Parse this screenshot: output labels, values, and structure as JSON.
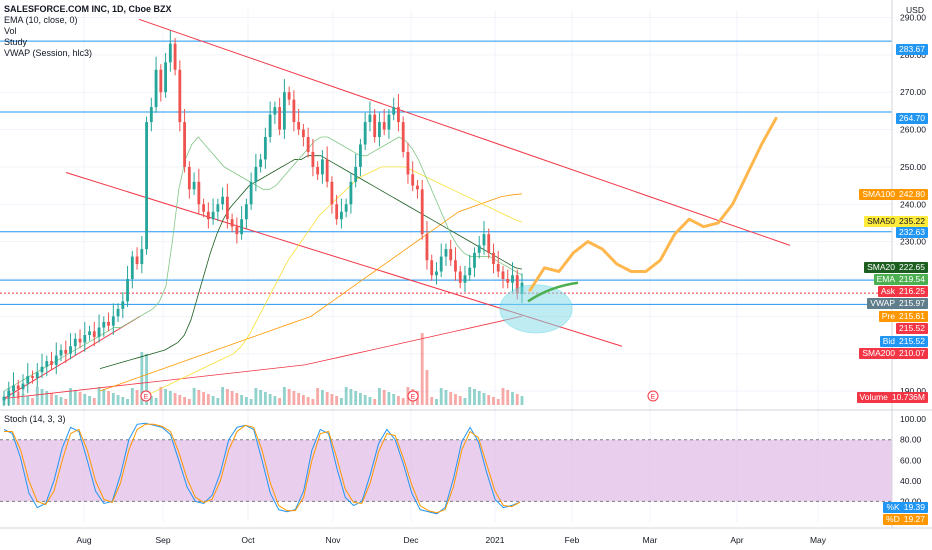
{
  "header": {
    "symbol": "SALESFORCE.COM INC, 1D, Cboe BZX",
    "ema": "EMA (10, close, 0)",
    "vol": "Vol",
    "study": "Study",
    "vwap": "VWAP (Session, hlc3)"
  },
  "price_axis": {
    "currency": "USD"
  },
  "stoch": {
    "label": "Stoch (14, 3, 3)"
  },
  "price_tags": [
    {
      "name": "",
      "value": "283.67",
      "color": "#2196f3",
      "text_color": "#ffffff"
    },
    {
      "name": "",
      "value": "264.70",
      "color": "#2196f3",
      "text_color": "#ffffff"
    },
    {
      "name": "SMA100",
      "value": "242.80",
      "color": "#ff9800",
      "text_color": "#ffffff"
    },
    {
      "name": "SMA50",
      "value": "235.22",
      "color": "#ffeb3b",
      "text_color": "#131722"
    },
    {
      "name": "",
      "value": "232.63",
      "color": "#2196f3",
      "text_color": "#ffffff"
    },
    {
      "name": "SMA20",
      "value": "222.65",
      "color": "#1b5e20",
      "text_color": "#ffffff"
    },
    {
      "name": "EMA",
      "value": "219.54",
      "color": "#4caf50",
      "text_color": "#ffffff"
    },
    {
      "name": "Ask",
      "value": "216.25",
      "color": "#f23645",
      "text_color": "#ffffff"
    },
    {
      "name": "VWAP",
      "value": "215.97",
      "color": "#607d8b",
      "text_color": "#ffffff"
    },
    {
      "name": "Pre",
      "value": "215.61",
      "color": "#ff9800",
      "text_color": "#ffffff"
    },
    {
      "name": "",
      "value": "215.52",
      "color": "#f23645",
      "text_color": "#ffffff"
    },
    {
      "name": "Bid",
      "value": "215.52",
      "color": "#2196f3",
      "text_color": "#ffffff"
    },
    {
      "name": "SMA200",
      "value": "210.07",
      "color": "#f23645",
      "text_color": "#ffffff"
    },
    {
      "name": "Volume",
      "value": "10.736M",
      "color": "#f23645",
      "text_color": "#ffffff"
    },
    {
      "name": "%K",
      "value": "19.39",
      "color": "#2196f3",
      "text_color": "#ffffff"
    },
    {
      "name": "%D",
      "value": "19.27",
      "color": "#ff9800",
      "text_color": "#ffffff"
    }
  ],
  "colors": {
    "up": "#26a69a",
    "down": "#ef5350",
    "hline": "#2196f3",
    "channel": "#f23645",
    "forecast": "#ffb74d",
    "stoch_band": "#e1bee7"
  },
  "chart_data": [
    {
      "type": "candlestick",
      "title": "SALESFORCE.COM INC, 1D, Cboe BZX",
      "ylabel": "USD",
      "yticks": [
        190,
        200,
        210,
        220,
        230,
        240,
        250,
        260,
        270,
        280,
        290
      ],
      "ylim": [
        186,
        292
      ],
      "xticks": [
        "Aug",
        "Sep",
        "Oct",
        "Nov",
        "Dec",
        "2021",
        "Feb",
        "Mar",
        "Apr",
        "May"
      ],
      "horizontal_levels": [
        283.67,
        264.7,
        232.63,
        219.7,
        216.2,
        213.2
      ],
      "closes": [
        188.5,
        190,
        191.5,
        190.5,
        192,
        194,
        193.5,
        195,
        196.5,
        198,
        197,
        199.5,
        201,
        200,
        202,
        204,
        203,
        205,
        206,
        204.5,
        207,
        208.5,
        207.5,
        210,
        212,
        214,
        220,
        226,
        224,
        228,
        262,
        266,
        276,
        270,
        278,
        283,
        276,
        262,
        250,
        244,
        246,
        240,
        238,
        236,
        238,
        240,
        242,
        236,
        234,
        232,
        236,
        240,
        246,
        250,
        252,
        258,
        264,
        266,
        260,
        270,
        268,
        262,
        260,
        258,
        254,
        250,
        248,
        252,
        246,
        240,
        236,
        238,
        240,
        246,
        250,
        256,
        262,
        264,
        258,
        262,
        260,
        264,
        266,
        262,
        254,
        248,
        245,
        244,
        232,
        225,
        221,
        222,
        226,
        228,
        225,
        222,
        219,
        221,
        223,
        227,
        229,
        232,
        227,
        224,
        222,
        220,
        219,
        221,
        216,
        219
      ],
      "ema_10": [
        190,
        191,
        192,
        193,
        194,
        195,
        196,
        197,
        198,
        199,
        200,
        201,
        202,
        203,
        204,
        205,
        206,
        207,
        207,
        208,
        209,
        210,
        211,
        212,
        214,
        218,
        230,
        244,
        252,
        256,
        258,
        256,
        254,
        252,
        250,
        249,
        248,
        247,
        246,
        245,
        244,
        244,
        245,
        247,
        249,
        251,
        253,
        255,
        257,
        258,
        258,
        257,
        256,
        255,
        254,
        253,
        253,
        254,
        255,
        256,
        257,
        258,
        257,
        255,
        252,
        248,
        244,
        240,
        236,
        232,
        229,
        227,
        226,
        226,
        226,
        226,
        225,
        224,
        223,
        222,
        221
      ],
      "sma_20": [
        196,
        196.5,
        197,
        197.5,
        198,
        198.5,
        199,
        199.5,
        200,
        200.5,
        201,
        202,
        203,
        205,
        209,
        215,
        221,
        227,
        232,
        236,
        239,
        241,
        243,
        245,
        246,
        247,
        248,
        249,
        250,
        251,
        252,
        252,
        253,
        253,
        253,
        252,
        251,
        250,
        249,
        248,
        247,
        246,
        245,
        244,
        243,
        242,
        241,
        240,
        239,
        238,
        237,
        236,
        235,
        234,
        233,
        232,
        231,
        230,
        229,
        228,
        227,
        226,
        225,
        224,
        223,
        222.65
      ],
      "sma_50": [
        188,
        189,
        190,
        191,
        192,
        193,
        194,
        195,
        196,
        197,
        198,
        199,
        200,
        202,
        205,
        209,
        213,
        217,
        221,
        225,
        228,
        231,
        234,
        237,
        239,
        241,
        243,
        245,
        247,
        248,
        249,
        250,
        250,
        250,
        250,
        249,
        248,
        247,
        246,
        245,
        244,
        243,
        242,
        241,
        240,
        239,
        238,
        237,
        236,
        235.22
      ],
      "sma_100": [
        190,
        191,
        192,
        193,
        194,
        195,
        196,
        197,
        198,
        199,
        200,
        201,
        202,
        203,
        204,
        205,
        206,
        207,
        208,
        209,
        210,
        212,
        214,
        216,
        218,
        220,
        222,
        224,
        226,
        228,
        230,
        232,
        234,
        236,
        238,
        239,
        240,
        241,
        242,
        242.5,
        242.8
      ],
      "sma_200": [
        188,
        188.5,
        189,
        189.5,
        190,
        190.5,
        191,
        191.5,
        192,
        192.5,
        193,
        193.5,
        194,
        194.5,
        195,
        195.5,
        196,
        196.5,
        197,
        198,
        199,
        200,
        201,
        202,
        203,
        204,
        205,
        206,
        207,
        208,
        209,
        210.07
      ],
      "forecast_path": [
        217,
        223,
        222,
        227,
        230,
        228,
        224,
        222,
        222,
        225,
        232,
        236,
        234,
        235,
        240,
        248,
        256,
        263
      ],
      "volume_max_label": "10.736M"
    },
    {
      "type": "line",
      "title": "Stoch (14, 3, 3)",
      "yticks": [
        20,
        40,
        60,
        80,
        100
      ],
      "ylim": [
        0,
        105
      ],
      "band": [
        20,
        80
      ],
      "series": [
        {
          "name": "%K",
          "values": [
            90,
            86,
            62,
            28,
            14,
            18,
            40,
            72,
            92,
            88,
            60,
            30,
            18,
            20,
            46,
            80,
            95,
            96,
            94,
            92,
            85,
            60,
            34,
            20,
            18,
            26,
            48,
            80,
            92,
            94,
            90,
            60,
            28,
            12,
            10,
            12,
            30,
            70,
            90,
            86,
            52,
            24,
            16,
            20,
            46,
            76,
            90,
            80,
            56,
            28,
            12,
            10,
            8,
            14,
            42,
            78,
            92,
            78,
            48,
            22,
            14,
            16,
            19.39
          ]
        },
        {
          "name": "%D",
          "values": [
            88,
            88,
            70,
            40,
            20,
            17,
            30,
            60,
            86,
            90,
            70,
            40,
            22,
            19,
            38,
            70,
            90,
            95,
            95,
            93,
            88,
            68,
            42,
            24,
            19,
            22,
            40,
            70,
            88,
            94,
            92,
            70,
            38,
            16,
            11,
            11,
            24,
            60,
            86,
            88,
            62,
            32,
            19,
            18,
            38,
            68,
            86,
            84,
            62,
            36,
            16,
            11,
            9,
            12,
            34,
            70,
            88,
            82,
            56,
            30,
            16,
            15,
            19.27
          ]
        }
      ]
    }
  ]
}
